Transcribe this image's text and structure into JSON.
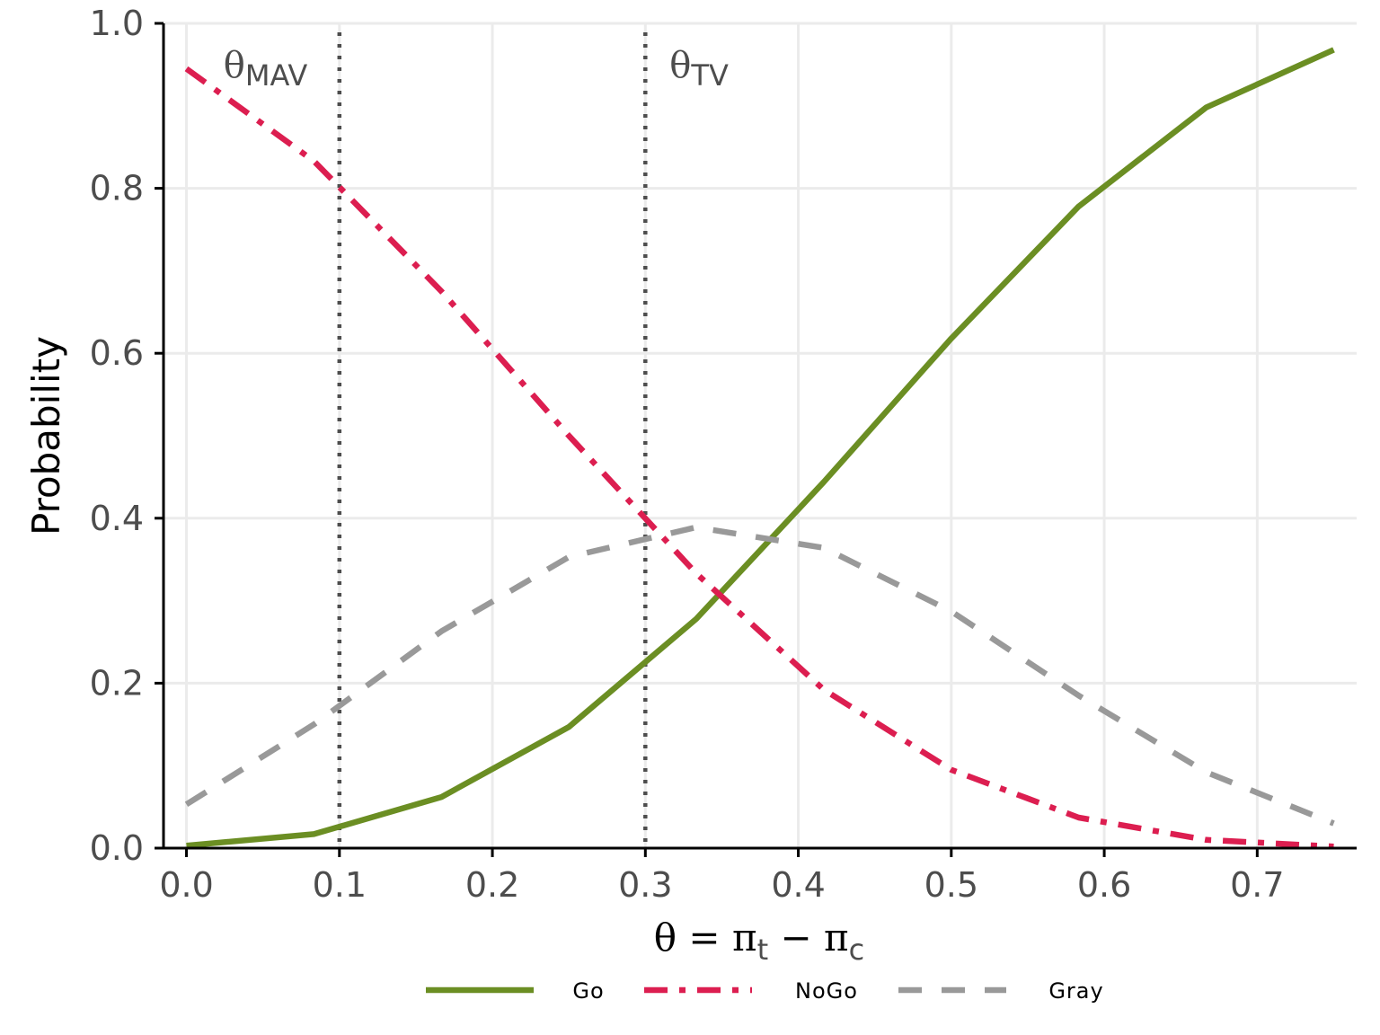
{
  "chart_data": {
    "type": "line",
    "title": "",
    "xlabel": {
      "base": "θ = π",
      "sub1": "t",
      "mid": " − π",
      "sub2": "c"
    },
    "ylabel": "Probability",
    "xlim": [
      -0.015,
      0.765
    ],
    "ylim": [
      0,
      1.0
    ],
    "x_ticks": [
      0.0,
      0.1,
      0.2,
      0.3,
      0.4,
      0.5,
      0.6,
      0.7
    ],
    "x_tick_labels": [
      "0.0",
      "0.1",
      "0.2",
      "0.3",
      "0.4",
      "0.5",
      "0.6",
      "0.7"
    ],
    "y_ticks": [
      0.0,
      0.2,
      0.4,
      0.6,
      0.8,
      1.0
    ],
    "y_tick_labels": [
      "0.0",
      "0.2",
      "0.4",
      "0.6",
      "0.8",
      "1.0"
    ],
    "grid": true,
    "legend_position": "bottom",
    "x": [
      0.0,
      0.0833,
      0.1667,
      0.25,
      0.3333,
      0.4167,
      0.5,
      0.5833,
      0.6667,
      0.75
    ],
    "series": [
      {
        "name": "Go",
        "color": "#6b8e23",
        "dash": "solid",
        "values": [
          0.003,
          0.017,
          0.062,
          0.147,
          0.278,
          0.444,
          0.618,
          0.778,
          0.898,
          0.968
        ]
      },
      {
        "name": "NoGo",
        "color": "#dc1e50",
        "dash": "dashdot",
        "values": [
          0.945,
          0.833,
          0.675,
          0.5,
          0.333,
          0.192,
          0.095,
          0.037,
          0.01,
          0.002
        ]
      },
      {
        "name": "Gray",
        "color": "#999999",
        "dash": "dashed",
        "values": [
          0.053,
          0.15,
          0.263,
          0.353,
          0.389,
          0.364,
          0.287,
          0.185,
          0.092,
          0.03
        ]
      }
    ],
    "reference_lines": [
      {
        "x": 0.1,
        "label": "θ",
        "sub": "MAV"
      },
      {
        "x": 0.3,
        "label": "θ",
        "sub": "TV"
      }
    ]
  }
}
